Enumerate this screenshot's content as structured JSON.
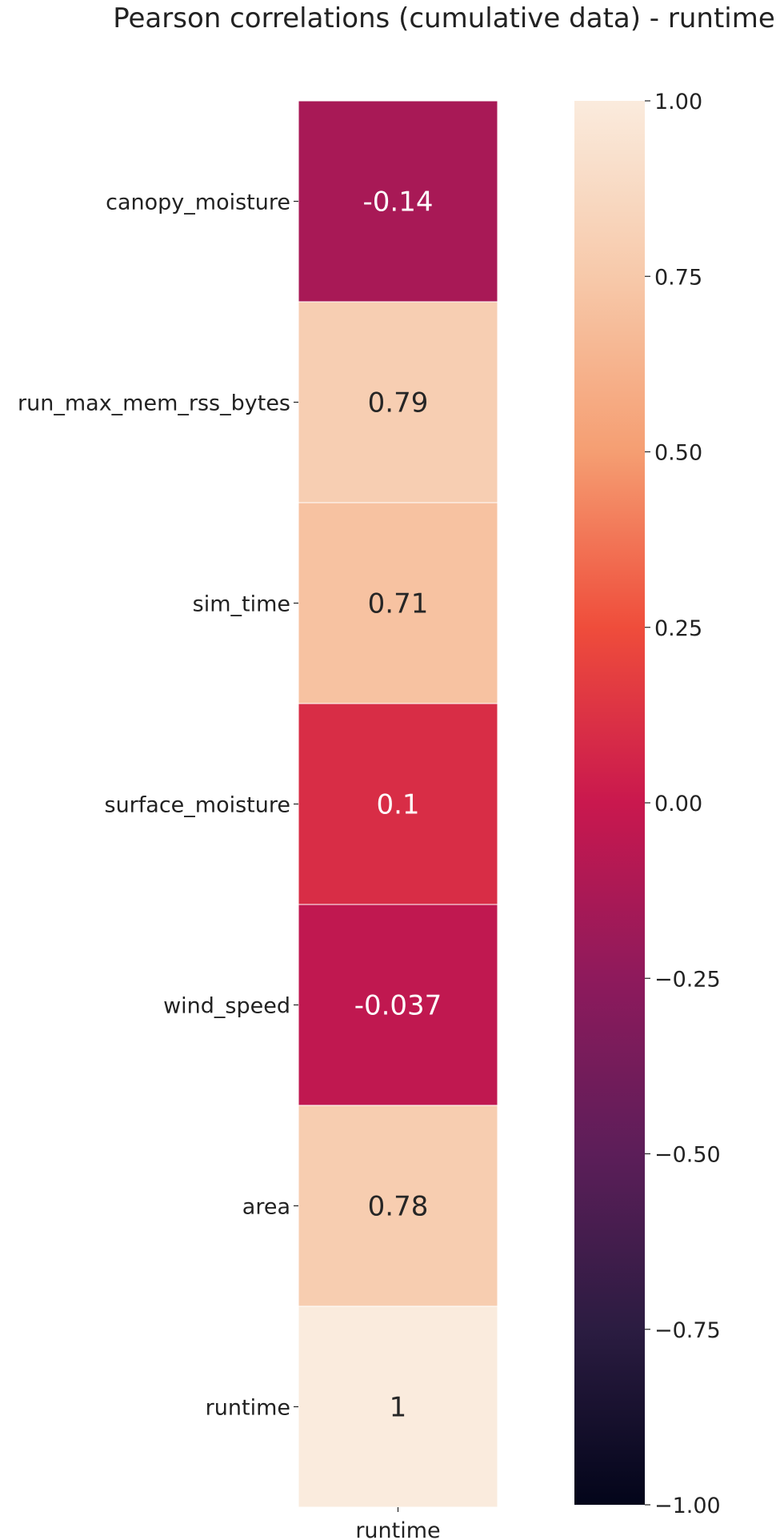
{
  "chart_data": {
    "type": "heatmap",
    "title": "Pearson correlations (cumulative data) - runtime",
    "rows": [
      "canopy_moisture",
      "run_max_mem_rss_bytes",
      "sim_time",
      "surface_moisture",
      "wind_speed",
      "area",
      "runtime"
    ],
    "columns": [
      "runtime"
    ],
    "values": [
      -0.14,
      0.79,
      0.71,
      0.1,
      -0.037,
      0.78,
      1
    ],
    "value_labels": [
      "-0.14",
      "0.79",
      "0.71",
      "0.1",
      "-0.037",
      "0.78",
      "1"
    ],
    "colorbar": {
      "range": [
        -1.0,
        1.0
      ],
      "ticks": [
        1.0,
        0.75,
        0.5,
        0.25,
        0.0,
        -0.25,
        -0.5,
        -0.75,
        -1.0
      ],
      "tick_labels": [
        "1.00",
        "0.75",
        "0.50",
        "0.25",
        "0.00",
        "−0.25",
        "−0.50",
        "−0.75",
        "−1.00"
      ],
      "colormap": "rocket",
      "colormap_stops": [
        {
          "v": 0.0,
          "c": "#03051a"
        },
        {
          "v": 0.125,
          "c": "#2b1c41"
        },
        {
          "v": 0.25,
          "c": "#5c1e59"
        },
        {
          "v": 0.375,
          "c": "#8e1a5c"
        },
        {
          "v": 0.5,
          "c": "#c9184e"
        },
        {
          "v": 0.625,
          "c": "#ef4d3b"
        },
        {
          "v": 0.75,
          "c": "#f59e72"
        },
        {
          "v": 0.875,
          "c": "#f7c9aa"
        },
        {
          "v": 1.0,
          "c": "#faebdd"
        }
      ]
    }
  }
}
